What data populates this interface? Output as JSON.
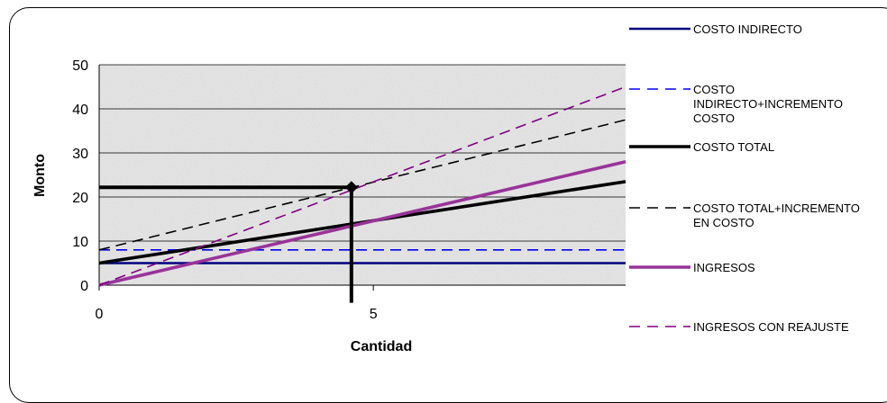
{
  "chart_data": {
    "type": "line",
    "xlabel": "Cantidad",
    "ylabel": "Monto",
    "xlim": [
      0,
      9.6
    ],
    "ylim": [
      0,
      50
    ],
    "x_ticks": [
      "0",
      "5"
    ],
    "x_tick_values": [
      0,
      5
    ],
    "y_ticks": [
      "0",
      "10",
      "20",
      "30",
      "40",
      "50"
    ],
    "y_tick_values": [
      0,
      10,
      20,
      30,
      40,
      50
    ],
    "grid": "horizontal",
    "legend_position": "right",
    "series": [
      {
        "name": "COSTO INDIRECTO",
        "color": "#000080",
        "dash": "solid",
        "width": "medium",
        "x": [
          0,
          9.6
        ],
        "y": [
          5,
          5
        ]
      },
      {
        "name": "COSTO INDIRECTO+INCREMENTO COSTO",
        "color": "#0000ff",
        "dash": "dashed",
        "width": "thin",
        "x": [
          0,
          9.6
        ],
        "y": [
          8,
          8
        ]
      },
      {
        "name": "COSTO TOTAL",
        "color": "#000000",
        "dash": "solid",
        "width": "thick",
        "x": [
          0,
          9.6
        ],
        "y": [
          5,
          23.5
        ]
      },
      {
        "name": "COSTO TOTAL+INCREMENTO EN COSTO",
        "color": "#000000",
        "dash": "dashed",
        "width": "thin",
        "x": [
          0,
          9.6
        ],
        "y": [
          8,
          37.5
        ]
      },
      {
        "name": "INGRESOS",
        "color": "#993399",
        "dash": "solid",
        "width": "thick",
        "x": [
          0,
          9.6
        ],
        "y": [
          0,
          28
        ]
      },
      {
        "name": "INGRESOS CON REAJUSTE",
        "color": "#800080",
        "dash": "dashed",
        "width": "thin",
        "x": [
          0,
          9.6
        ],
        "y": [
          0,
          45
        ]
      }
    ],
    "annotations": [
      {
        "type": "point",
        "x": 4.6,
        "y": 22.2,
        "marker": "diamond"
      },
      {
        "type": "hline",
        "x_from": 0,
        "x_to": 4.6,
        "y": 22.2
      },
      {
        "type": "vline",
        "x": 4.6,
        "y_from": -4,
        "y_to": 22.2
      }
    ]
  }
}
